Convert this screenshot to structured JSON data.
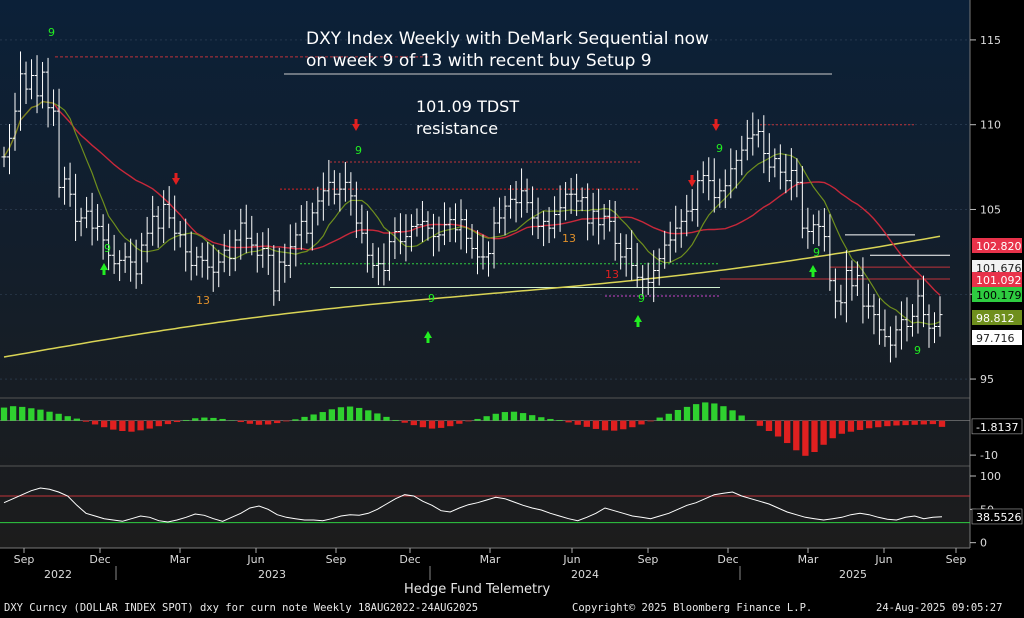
{
  "title_line1": "DXY Index Weekly with DeMark Sequential now",
  "title_line2": "on week 9 of 13 with recent buy Setup 9",
  "annotation_line1": "101.09 TDST",
  "annotation_line2": "resistance",
  "credit": "Hedge Fund Telemetry",
  "footer_left": "DXY Curncy (DOLLAR INDEX SPOT) dxy for curn note  Weekly 18AUG2022-24AUG2025",
  "footer_mid": "Copyright© 2025 Bloomberg Finance L.P.",
  "footer_right": "24-Aug-2025 09:05:27",
  "colors": {
    "background_top": "#0b2038",
    "background_bottom": "#1c1c1c",
    "bars": "#ffffff",
    "sma_fast": "#6f8f1d",
    "sma_mid": "#c8283a",
    "sma_slow": "#d9d455",
    "setup_buy": "#22ee22",
    "setup_sell": "#e03030",
    "countdown": "#e0902a",
    "osc_pos": "#2fd12f",
    "osc_neg": "#e02020"
  },
  "chart_data": [
    {
      "type": "line",
      "subtype": "candlestick-with-moving-averages",
      "title": "DXY Index Weekly with DeMark Sequential now on week 9 of 13 with recent buy Setup 9",
      "y_range": [
        94,
        117
      ],
      "y_ticks": [
        95,
        100,
        105,
        110,
        115
      ],
      "x_ticks": [
        "Sep",
        "Dec",
        "Mar",
        "Jun",
        "Sep",
        "Dec",
        "Mar",
        "Jun",
        "Sep",
        "Dec",
        "Mar",
        "Jun",
        "Sep"
      ],
      "x_years": [
        "2022",
        "2023",
        "2024",
        "2025"
      ],
      "price_close_weekly": [
        108.1,
        109.2,
        110.8,
        113.0,
        112.1,
        112.9,
        111.7,
        113.1,
        111.0,
        110.8,
        106.3,
        106.8,
        105.9,
        104.3,
        104.5,
        104.9,
        103.9,
        104.0,
        103.2,
        102.3,
        101.8,
        102.0,
        102.2,
        101.9,
        101.2,
        102.9,
        103.6,
        104.6,
        103.9,
        105.3,
        104.5,
        103.6,
        103.5,
        102.5,
        101.7,
        102.2,
        102.0,
        101.6,
        101.3,
        101.9,
        102.6,
        102.1,
        103.2,
        104.2,
        103.3,
        102.9,
        102.3,
        102.7,
        102.3,
        100.2,
        101.9,
        101.7,
        102.8,
        103.5,
        104.3,
        103.6,
        104.8,
        105.5,
        106.1,
        106.6,
        105.9,
        106.2,
        106.6,
        105.8,
        104.2,
        103.6,
        102.3,
        101.7,
        101.8,
        101.4,
        103.1,
        103.7,
        103.1,
        103.4,
        104.0,
        104.1,
        104.3,
        103.9,
        103.4,
        103.5,
        104.1,
        104.4,
        103.8,
        104.4,
        103.3,
        102.7,
        102.2,
        102.2,
        102.4,
        104.2,
        104.5,
        105.2,
        105.6,
        105.4,
        106.1,
        105.4,
        104.5,
        104.0,
        104.3,
        103.9,
        104.7,
        105.1,
        105.9,
        105.9,
        105.5,
        105.7,
        104.2,
        104.9,
        104.1,
        104.6,
        104.3,
        103.0,
        102.2,
        102.7,
        101.7,
        101.0,
        100.9,
        100.7,
        101.4,
        102.1,
        102.9,
        103.2,
        103.9,
        104.3,
        104.9,
        105.0,
        106.7,
        107.0,
        106.7,
        105.7,
        106.1,
        106.4,
        107.4,
        107.9,
        108.5,
        109.2,
        109.4,
        109.6,
        108.3,
        107.5,
        108.0,
        107.2,
        106.7,
        107.3,
        106.6,
        103.9,
        103.7,
        104.1,
        104.0,
        103.4,
        100.8,
        99.6,
        99.5,
        101.4,
        100.5,
        101.1,
        99.3,
        99.3,
        98.8,
        97.9,
        97.5,
        97.0,
        97.9,
        98.5,
        98.1,
        98.7,
        99.9,
        98.8,
        98.0,
        98.1,
        98.8
      ],
      "labels_right": [
        "102.820",
        "101.676",
        "101.092",
        "100.179",
        "98.812",
        "97.716"
      ],
      "td_setup_counts": [
        "9",
        "9",
        "9",
        "9",
        "9",
        "9",
        "9",
        "9"
      ],
      "td_countdown_counts": [
        "13",
        "13",
        "13"
      ],
      "annotation": "101.09 TDST resistance"
    },
    {
      "type": "bar",
      "subtype": "oscillator-histogram",
      "y_range": [
        -12,
        6
      ],
      "y_ticks": [
        -10
      ],
      "last_value": "-1.8137",
      "values": [
        3.8,
        4.2,
        4.0,
        3.6,
        3.2,
        2.6,
        2.0,
        1.3,
        0.6,
        -0.3,
        -1.1,
        -1.9,
        -2.6,
        -3.0,
        -3.2,
        -2.8,
        -2.3,
        -1.6,
        -1.0,
        -0.4,
        0.2,
        0.7,
        0.9,
        0.8,
        0.5,
        0.1,
        -0.4,
        -0.9,
        -1.2,
        -1.1,
        -0.7,
        -0.2,
        0.4,
        1.1,
        1.8,
        2.5,
        3.3,
        3.9,
        4.1,
        3.7,
        3.0,
        2.1,
        1.1,
        0.2,
        -0.6,
        -1.3,
        -1.9,
        -2.3,
        -2.1,
        -1.6,
        -0.9,
        -0.2,
        0.5,
        1.3,
        2.0,
        2.5,
        2.6,
        2.2,
        1.6,
        1.0,
        0.5,
        0.2,
        -0.5,
        -1.2,
        -1.8,
        -2.4,
        -2.8,
        -2.9,
        -2.5,
        -1.9,
        -1.1,
        -0.2,
        0.9,
        2.0,
        3.1,
        4.0,
        4.8,
        5.3,
        5.0,
        4.2,
        3.0,
        1.5,
        0.1,
        -1.5,
        -3.0,
        -4.6,
        -6.5,
        -8.6,
        -10.2,
        -9.1,
        -7.0,
        -5.1,
        -3.8,
        -3.2,
        -2.7,
        -2.2,
        -1.9,
        -1.6,
        -1.4,
        -1.3,
        -1.2,
        -1.1,
        -1.0,
        -1.8
      ]
    },
    {
      "type": "line",
      "subtype": "oscillator-line",
      "y_range": [
        -8,
        112
      ],
      "y_ticks": [
        0,
        50,
        100
      ],
      "upper_band": 70,
      "lower_band": 30,
      "last_value": "38.5526",
      "values": [
        60,
        66,
        72,
        78,
        82,
        80,
        76,
        70,
        56,
        44,
        40,
        36,
        34,
        32,
        36,
        40,
        38,
        33,
        31,
        34,
        38,
        43,
        41,
        36,
        32,
        38,
        44,
        52,
        55,
        50,
        42,
        38,
        36,
        34,
        34,
        33,
        36,
        40,
        42,
        41,
        44,
        50,
        58,
        66,
        72,
        70,
        62,
        56,
        48,
        46,
        52,
        57,
        60,
        64,
        68,
        66,
        61,
        56,
        52,
        49,
        44,
        40,
        36,
        33,
        38,
        44,
        52,
        48,
        44,
        40,
        38,
        36,
        40,
        44,
        50,
        56,
        60,
        66,
        72,
        74,
        76,
        70,
        66,
        62,
        58,
        52,
        46,
        42,
        38,
        36,
        34,
        36,
        38,
        42,
        44,
        42,
        38,
        35,
        34,
        38,
        40,
        36,
        38,
        39
      ]
    }
  ]
}
